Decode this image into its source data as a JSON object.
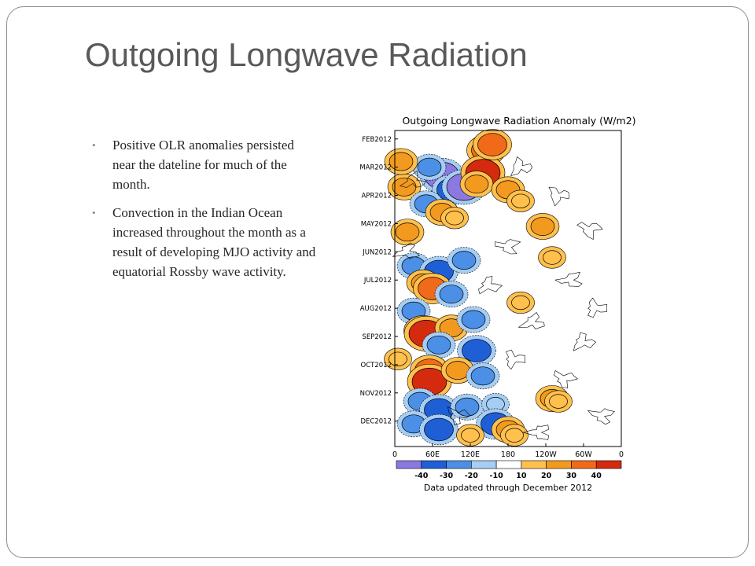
{
  "slide": {
    "title": "Outgoing Longwave Radiation",
    "bullets": [
      "Positive OLR anomalies persisted near the dateline for much of the month.",
      "Convection in the Indian Ocean increased throughout the month as a result of developing MJO activity and equatorial Rossby wave activity."
    ]
  },
  "chart_data": {
    "type": "heatmap",
    "title": "Outgoing Longwave Radiation Anomaly (W/m2)",
    "x_tick_labels": [
      "0",
      "60E",
      "120E",
      "180",
      "120W",
      "60W",
      "0"
    ],
    "y_tick_labels": [
      "FEB2012",
      "MAR2012",
      "APR2012",
      "MAY2012",
      "JUN2012",
      "JUL2012",
      "AUG2012",
      "SEP2012",
      "OCT2012",
      "NOV2012",
      "DEC2012"
    ],
    "colorbar_labels": [
      "-40",
      "-30",
      "-20",
      "-10",
      "10",
      "20",
      "30",
      "40"
    ],
    "colorbar_colors": [
      "#8b78e0",
      "#1f5fd6",
      "#4c8fe6",
      "#a6cdf3",
      "#ffffff",
      "#ffc04d",
      "#f29a1f",
      "#f06a1a",
      "#d42a0e"
    ],
    "footnote": "Data updated through December 2012",
    "anomalies": [
      {
        "lon": 75,
        "month": 1.3,
        "value": -40
      },
      {
        "lon": 90,
        "month": 1.8,
        "value": -30
      },
      {
        "lon": 110,
        "month": 1.7,
        "value": -40
      },
      {
        "lon": 55,
        "month": 1.0,
        "value": -20
      },
      {
        "lon": 145,
        "month": 0.4,
        "value": 30
      },
      {
        "lon": 140,
        "month": 1.2,
        "value": 40
      },
      {
        "lon": 155,
        "month": 0.2,
        "value": 30
      },
      {
        "lon": 130,
        "month": 1.6,
        "value": 20
      },
      {
        "lon": 180,
        "month": 1.8,
        "value": 20
      },
      {
        "lon": 200,
        "month": 2.2,
        "value": 10
      },
      {
        "lon": 15,
        "month": 1.7,
        "value": 20
      },
      {
        "lon": 10,
        "month": 0.8,
        "value": 20
      },
      {
        "lon": 50,
        "month": 2.3,
        "value": -20
      },
      {
        "lon": 75,
        "month": 2.6,
        "value": 20
      },
      {
        "lon": 95,
        "month": 2.8,
        "value": 10
      },
      {
        "lon": 20,
        "month": 3.3,
        "value": 20
      },
      {
        "lon": 30,
        "month": 4.5,
        "value": -20
      },
      {
        "lon": 70,
        "month": 4.7,
        "value": -30
      },
      {
        "lon": 110,
        "month": 4.3,
        "value": -20
      },
      {
        "lon": 45,
        "month": 5.1,
        "value": 20
      },
      {
        "lon": 60,
        "month": 5.3,
        "value": 30
      },
      {
        "lon": 90,
        "month": 5.5,
        "value": -20
      },
      {
        "lon": 30,
        "month": 6.1,
        "value": -20
      },
      {
        "lon": 45,
        "month": 6.8,
        "value": 30
      },
      {
        "lon": 50,
        "month": 6.9,
        "value": 40
      },
      {
        "lon": 90,
        "month": 6.7,
        "value": 20
      },
      {
        "lon": 125,
        "month": 6.4,
        "value": -20
      },
      {
        "lon": 70,
        "month": 7.3,
        "value": -20
      },
      {
        "lon": 130,
        "month": 7.5,
        "value": -30
      },
      {
        "lon": 55,
        "month": 8.2,
        "value": 30
      },
      {
        "lon": 55,
        "month": 8.6,
        "value": 40
      },
      {
        "lon": 100,
        "month": 8.2,
        "value": 20
      },
      {
        "lon": 140,
        "month": 8.4,
        "value": -20
      },
      {
        "lon": 40,
        "month": 9.3,
        "value": -20
      },
      {
        "lon": 70,
        "month": 9.6,
        "value": -30
      },
      {
        "lon": 115,
        "month": 9.5,
        "value": -20
      },
      {
        "lon": 250,
        "month": 9.2,
        "value": 20
      },
      {
        "lon": 260,
        "month": 9.3,
        "value": 10
      },
      {
        "lon": 160,
        "month": 9.4,
        "value": -10
      },
      {
        "lon": 30,
        "month": 10.1,
        "value": -20
      },
      {
        "lon": 70,
        "month": 10.3,
        "value": -30
      },
      {
        "lon": 160,
        "month": 10.1,
        "value": -30
      },
      {
        "lon": 180,
        "month": 10.3,
        "value": 20
      },
      {
        "lon": 190,
        "month": 10.5,
        "value": 10
      },
      {
        "lon": 120,
        "month": 10.5,
        "value": 10
      },
      {
        "lon": 235,
        "month": 3.1,
        "value": 20
      },
      {
        "lon": 250,
        "month": 4.2,
        "value": 10
      },
      {
        "lon": 200,
        "month": 5.8,
        "value": 10
      },
      {
        "lon": 5,
        "month": 7.8,
        "value": 10
      }
    ]
  }
}
